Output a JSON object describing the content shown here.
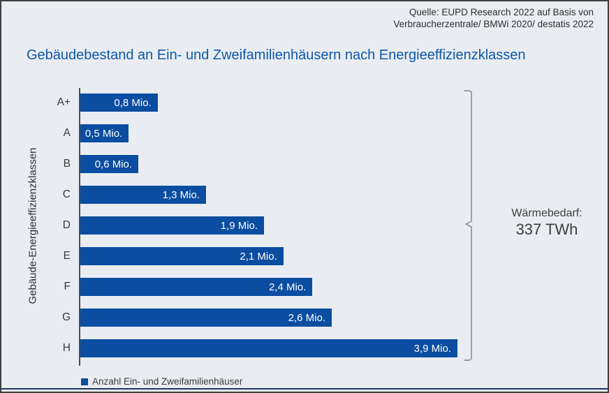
{
  "source": {
    "line1": "Quelle: EUPD Research 2022 auf Basis von",
    "line2": "Verbraucherzentrale/ BMWi 2020/ destatis 2022"
  },
  "title": "Gebäudebestand an Ein- und Zweifamilienhäusern nach Energieeffizienzklassen",
  "chart_data": {
    "type": "bar",
    "orientation": "horizontal",
    "title": "Gebäudebestand an Ein- und Zweifamilienhäusern nach Energieeffizienzklassen",
    "ylabel": "Gebäude-Energieeffizienzklassen",
    "xlabel": "",
    "categories": [
      "A+",
      "A",
      "B",
      "C",
      "D",
      "E",
      "F",
      "G",
      "H"
    ],
    "values": [
      0.8,
      0.5,
      0.6,
      1.3,
      1.9,
      2.1,
      2.4,
      2.6,
      3.9
    ],
    "value_labels": [
      "0,8 Mio.",
      "0,5 Mio.",
      "0,6 Mio.",
      "1,3 Mio.",
      "1,9 Mio.",
      "2,1 Mio.",
      "2,4 Mio.",
      "2,6 Mio.",
      "3,9 Mio."
    ],
    "unit": "Mio.",
    "xlim": [
      0,
      3.9
    ],
    "grid": false,
    "legend": [
      "Anzahl Ein- und Zweifamilienhäuser"
    ],
    "legend_position": "bottom-left",
    "annotation": {
      "label": "Wärmebedarf:",
      "value": "337 TWh",
      "bracket": "spans all bars, right side"
    }
  },
  "annotation": {
    "line1": "Wärmebedarf:",
    "line2": "337 TWh"
  },
  "legend": {
    "label": "Anzahl Ein- und Zweifamilienhäuser"
  },
  "y_axis_title": "Gebäude-Energieeffizienzklassen",
  "colors": {
    "bar_blue": "#0b4da1",
    "accent_blue": "#0e57a8",
    "navy_line": "#20375f",
    "background": "#e9edf2",
    "border_dark": "#3f3f3f",
    "text_dark": "#2e2e2e",
    "bracket_gray": "#8f9499"
  }
}
